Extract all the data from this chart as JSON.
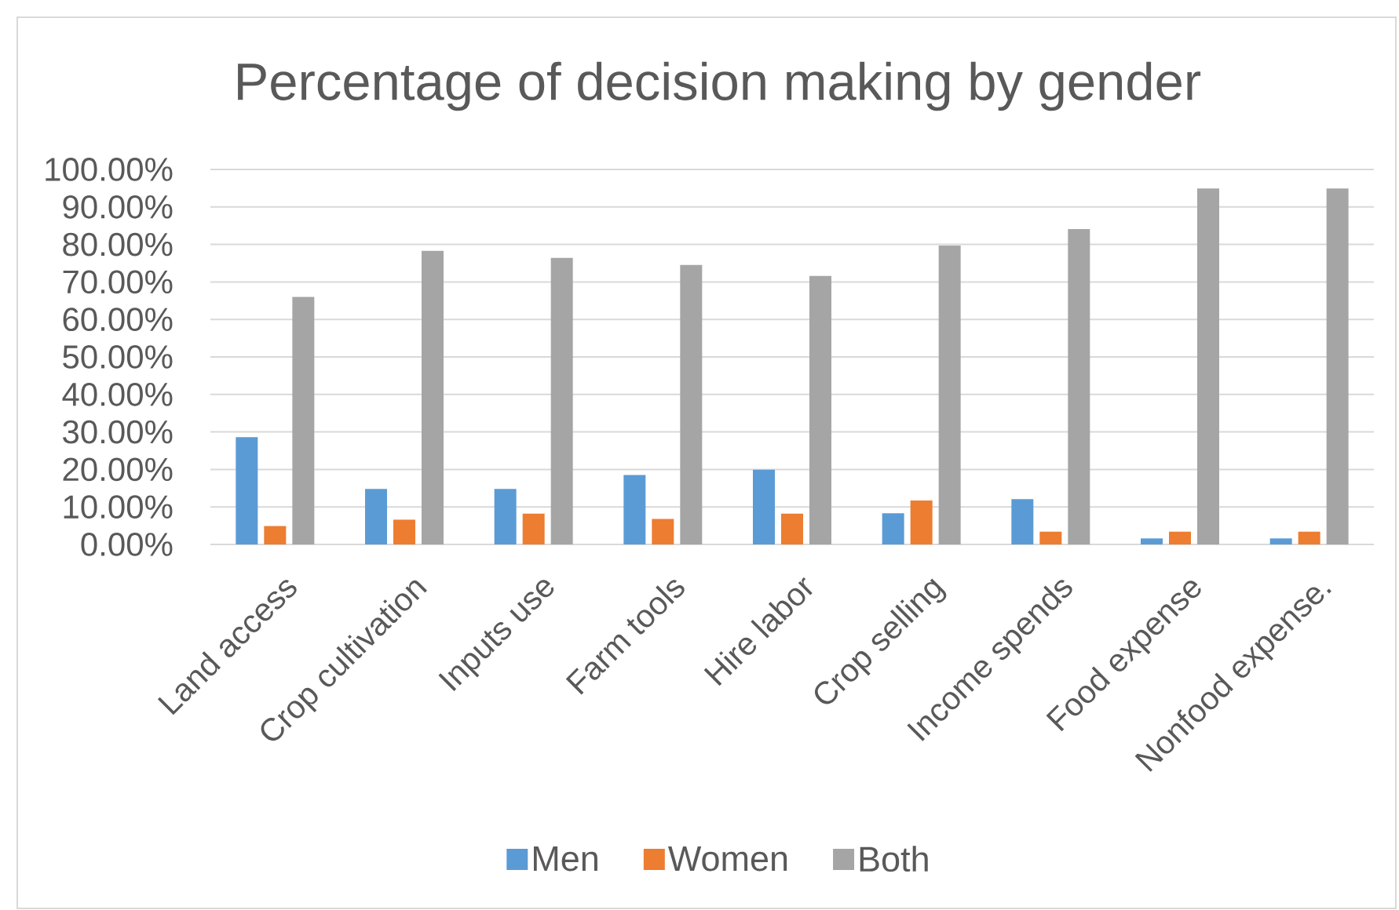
{
  "chart_data": {
    "type": "bar",
    "title": "Percentage of decision making by gender",
    "categories": [
      "Land access",
      "Crop cultivation",
      "Inputs use",
      "Farm tools",
      "Hire labor",
      "Crop selling",
      "Income spends",
      "Food expense",
      "Nonfood expense."
    ],
    "series": [
      {
        "name": "Men",
        "color": "#5b9bd5",
        "values": [
          28.6,
          14.8,
          14.8,
          18.5,
          19.9,
          8.3,
          12.1,
          1.6,
          1.6
        ]
      },
      {
        "name": "Women",
        "color": "#ed7d31",
        "values": [
          4.9,
          6.6,
          8.2,
          6.8,
          8.2,
          11.7,
          3.4,
          3.4,
          3.4
        ]
      },
      {
        "name": "Both",
        "color": "#a5a5a5",
        "values": [
          66.0,
          78.3,
          76.4,
          74.5,
          71.6,
          79.7,
          84.1,
          94.9,
          94.9
        ]
      }
    ],
    "ylim": [
      0,
      100
    ],
    "yticks": [
      {
        "value": 0,
        "label": "0.00%"
      },
      {
        "value": 10,
        "label": "10.00%"
      },
      {
        "value": 20,
        "label": "20.00%"
      },
      {
        "value": 30,
        "label": "30.00%"
      },
      {
        "value": 40,
        "label": "40.00%"
      },
      {
        "value": 50,
        "label": "50.00%"
      },
      {
        "value": 60,
        "label": "60.00%"
      },
      {
        "value": 70,
        "label": "70.00%"
      },
      {
        "value": 80,
        "label": "80.00%"
      },
      {
        "value": 90,
        "label": "90.00%"
      },
      {
        "value": 100,
        "label": "100.00%"
      }
    ],
    "grid": "y",
    "legend": "bottom"
  }
}
